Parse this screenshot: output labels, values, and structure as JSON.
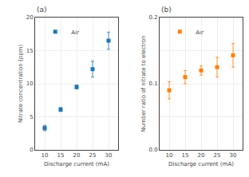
{
  "chart_data": [
    {
      "type": "scatter",
      "title": "(a)",
      "xlabel": "Discharge current (mA)",
      "ylabel": "Nitrate concentration (ppm)",
      "x": [
        10,
        15,
        20,
        25,
        30
      ],
      "series": [
        {
          "name": "Air",
          "marker": "square",
          "values": [
            3.3,
            6.1,
            9.5,
            12.2,
            16.5
          ],
          "yerr": [
            0.4,
            0.3,
            0.3,
            1.2,
            1.3
          ]
        }
      ],
      "xlim": [
        7,
        33
      ],
      "xticks": [
        10,
        15,
        20,
        25,
        30
      ],
      "ylim": [
        0,
        20
      ],
      "yticks": [
        0,
        5,
        10,
        15,
        20
      ],
      "legend": "upper left"
    },
    {
      "type": "scatter",
      "title": "(b)",
      "xlabel": "Discharge current (mA)",
      "ylabel": "Number ratio of nitrate to electron",
      "x": [
        10,
        15,
        20,
        25,
        30
      ],
      "series": [
        {
          "name": "Air",
          "marker": "square",
          "values": [
            0.09,
            0.11,
            0.12,
            0.125,
            0.143
          ],
          "yerr": [
            0.013,
            0.01,
            0.007,
            0.015,
            0.018
          ]
        }
      ],
      "xlim": [
        7,
        33
      ],
      "xticks": [
        10,
        15,
        20,
        25,
        30
      ],
      "ylim": [
        0.0,
        0.2
      ],
      "yticks": [
        {
          "value": 0.0,
          "label": "0.0"
        },
        {
          "value": 0.05,
          "label": null
        },
        0.1,
        {
          "value": 0.15,
          "label": null
        },
        0.2
      ],
      "legend": "upper left"
    }
  ]
}
